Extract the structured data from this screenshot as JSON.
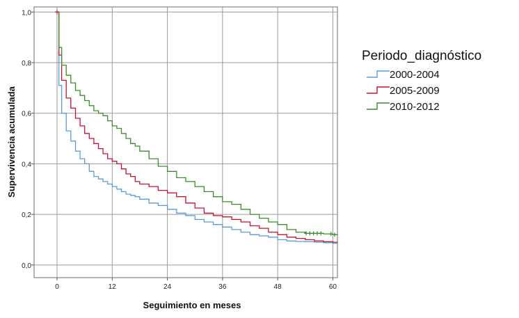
{
  "chart_data": {
    "type": "line",
    "title": "",
    "xlabel": "Seguimiento en meses",
    "ylabel": "Supervivencia acumulada",
    "xlim": [
      -5,
      61
    ],
    "ylim": [
      -0.05,
      1.02
    ],
    "xticks": [
      0,
      12,
      24,
      36,
      48,
      60
    ],
    "yticks": [
      0.0,
      0.2,
      0.4,
      0.6,
      0.8,
      1.0
    ],
    "xtick_labels": [
      "0",
      "12",
      "24",
      "36",
      "48",
      "60"
    ],
    "ytick_labels": [
      "0,0",
      "0,2",
      "0,4",
      "0,6",
      "0,8",
      "1,0"
    ],
    "grid": true,
    "legend": {
      "title": "Periodo_diagnóstico",
      "position": "right"
    },
    "series": [
      {
        "name": "2000-2004",
        "color": "#5b9bd5",
        "x": [
          0,
          0.4,
          1,
          2,
          3,
          4,
          5,
          6,
          7,
          8,
          9,
          10,
          11,
          12,
          13,
          14,
          15,
          16,
          17,
          18,
          20,
          22,
          24,
          26,
          28,
          30,
          32,
          34,
          36,
          38,
          40,
          42,
          44,
          46,
          48,
          50,
          52,
          54,
          56,
          58,
          60,
          61
        ],
        "y": [
          1.0,
          0.71,
          0.6,
          0.53,
          0.49,
          0.45,
          0.42,
          0.4,
          0.37,
          0.35,
          0.34,
          0.33,
          0.32,
          0.31,
          0.3,
          0.29,
          0.28,
          0.275,
          0.27,
          0.26,
          0.245,
          0.235,
          0.22,
          0.205,
          0.195,
          0.18,
          0.17,
          0.16,
          0.15,
          0.14,
          0.13,
          0.12,
          0.115,
          0.11,
          0.1,
          0.095,
          0.093,
          0.092,
          0.09,
          0.088,
          0.086,
          0.085
        ]
      },
      {
        "name": "2005-2009",
        "color": "#c8102e",
        "x": [
          0,
          0.4,
          1,
          2,
          3,
          4,
          5,
          6,
          7,
          8,
          9,
          10,
          11,
          12,
          13,
          14,
          15,
          16,
          17,
          18,
          20,
          22,
          24,
          26,
          28,
          30,
          32,
          34,
          36,
          38,
          40,
          42,
          44,
          46,
          48,
          50,
          52,
          54,
          56,
          58,
          60,
          61
        ],
        "y": [
          1.0,
          0.83,
          0.73,
          0.66,
          0.62,
          0.58,
          0.55,
          0.52,
          0.5,
          0.48,
          0.46,
          0.44,
          0.42,
          0.41,
          0.4,
          0.38,
          0.36,
          0.35,
          0.33,
          0.32,
          0.31,
          0.295,
          0.285,
          0.27,
          0.245,
          0.225,
          0.205,
          0.195,
          0.19,
          0.18,
          0.17,
          0.155,
          0.145,
          0.13,
          0.12,
          0.11,
          0.105,
          0.1,
          0.095,
          0.092,
          0.09,
          0.088
        ]
      },
      {
        "name": "2010-2012",
        "color": "#3b8c2a",
        "x": [
          0,
          0.4,
          1,
          2,
          3,
          4,
          5,
          6,
          7,
          8,
          9,
          10,
          11,
          12,
          13,
          14,
          15,
          16,
          17,
          18,
          20,
          22,
          24,
          26,
          28,
          30,
          32,
          34,
          36,
          38,
          40,
          42,
          44,
          46,
          48,
          50,
          52,
          54,
          56,
          58,
          60,
          61
        ],
        "y": [
          1.0,
          0.86,
          0.79,
          0.75,
          0.72,
          0.69,
          0.67,
          0.65,
          0.63,
          0.61,
          0.6,
          0.59,
          0.57,
          0.55,
          0.54,
          0.52,
          0.5,
          0.48,
          0.47,
          0.45,
          0.42,
          0.39,
          0.37,
          0.345,
          0.33,
          0.31,
          0.29,
          0.27,
          0.25,
          0.24,
          0.22,
          0.2,
          0.185,
          0.17,
          0.16,
          0.14,
          0.13,
          0.125,
          0.125,
          0.123,
          0.12,
          0.118
        ]
      }
    ]
  }
}
